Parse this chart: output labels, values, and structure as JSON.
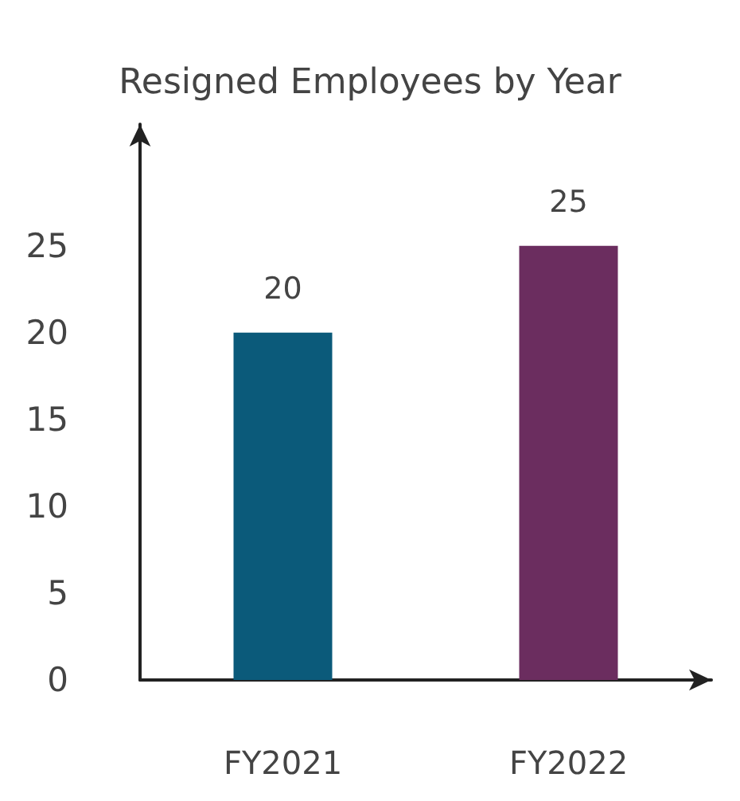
{
  "chart_data": {
    "type": "bar",
    "title": "Resigned Employees by Year",
    "categories": [
      "FY2021",
      "FY2022"
    ],
    "values": [
      20,
      25
    ],
    "colors": [
      "#0b5a7a",
      "#6b2d5f"
    ],
    "ylim": [
      0,
      32
    ],
    "yticks": [
      0,
      5,
      10,
      15,
      20,
      25
    ],
    "grid": false,
    "data_labels": true
  }
}
